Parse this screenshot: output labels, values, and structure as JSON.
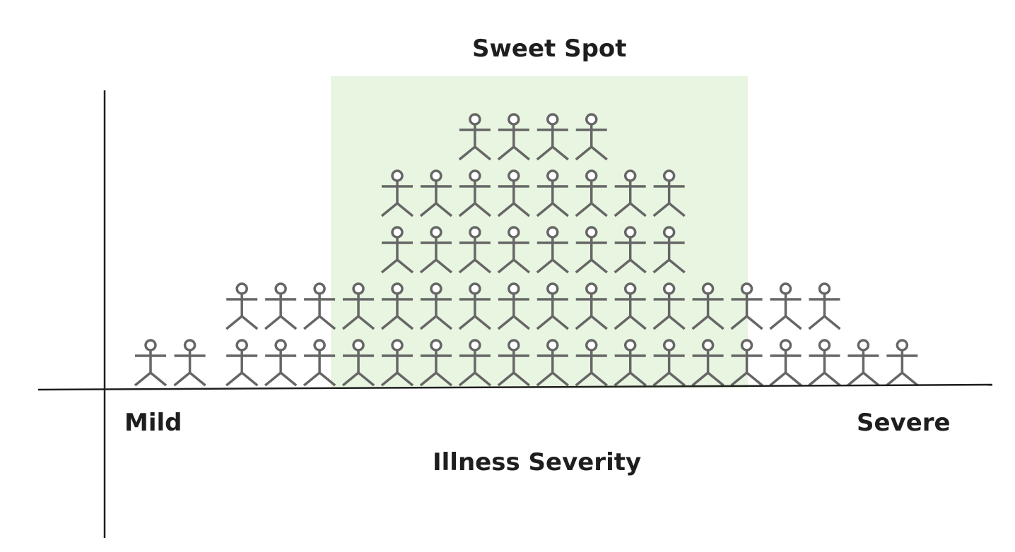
{
  "diagram": {
    "highlight_label": "Sweet Spot",
    "x_axis_title": "Illness Severity",
    "x_axis_left_label": "Mild",
    "x_axis_right_label": "Severe",
    "highlight_color": "#e8f5e0",
    "figure_color": "#666666",
    "axis_color": "#1e1e1e",
    "figure_icon": "stick-person-icon",
    "figure_counts_per_column": [
      1,
      1,
      2,
      2,
      2,
      2,
      4,
      4,
      5,
      5,
      5,
      5,
      4,
      4,
      2,
      2,
      2,
      2,
      1,
      1
    ]
  }
}
